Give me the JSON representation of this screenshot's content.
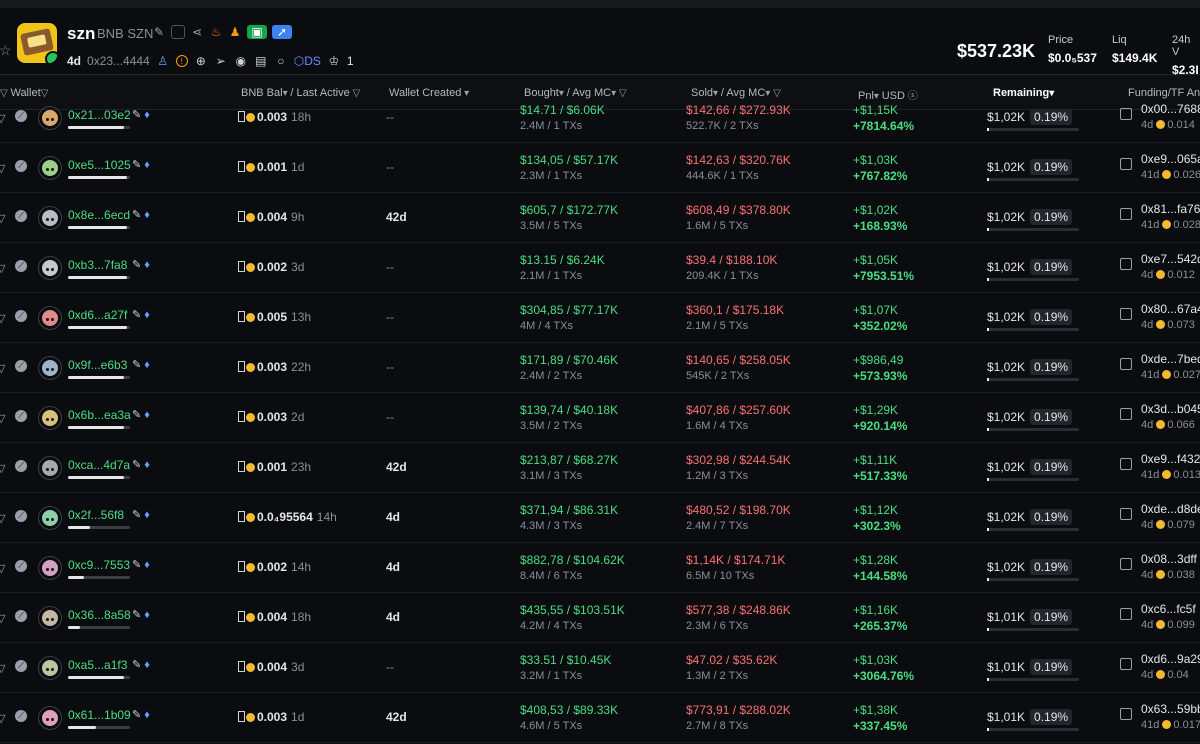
{
  "token": {
    "name": "szn",
    "chain": "BNB SZN",
    "age": "4d",
    "address": "0x23...4444",
    "dex_label": "DS",
    "holders_count": "1"
  },
  "stats": {
    "market_cap": "$537.23K",
    "price_label": "Price",
    "price_value": "$0.0₅537",
    "liq_label": "Liq",
    "liq_value": "$149.4K",
    "vol_label": "24h V",
    "vol_value": "$2.3I"
  },
  "columns": {
    "wallet": "Wallet",
    "bal": "BNB Bal",
    "last_active": "/ Last Active",
    "created": "Wallet Created",
    "bought": "Bought",
    "bought_avg": "/ Avg MC",
    "sold": "Sold",
    "sold_avg": "/ Avg MC",
    "pnl": "Pnl",
    "pnl_unit": "USD",
    "remaining": "Remaining",
    "funding": "Funding/TF An"
  },
  "colors": {
    "green": "#4ade80",
    "red": "#f87171",
    "bnb": "#f3ba2f"
  },
  "rows": [
    {
      "wallet": "0x21...03e2",
      "gem": true,
      "bar": 90,
      "avatar": "#d9a86c",
      "bal": "0.003",
      "last": "18h",
      "created": "--",
      "bought": "$14.71 / $6.06K",
      "bought_sub": "2.4M / 1 TXs",
      "sold": "$142,66 / $272.93K",
      "sold_sub": "522.7K / 2 TXs",
      "pnl": "+$1,15K",
      "pnl_pct": "+7814.64%",
      "remaining": "$1,02K",
      "rem_pct": "0.19%",
      "fund_addr": "0x00...7688",
      "fund_age": "4d",
      "fund_amt": "0.014"
    },
    {
      "wallet": "0xe5...1025",
      "gem": true,
      "bar": 95,
      "avatar": "#9ccf8a",
      "bal": "0.001",
      "last": "1d",
      "created": "--",
      "bought": "$134,05 / $57.17K",
      "bought_sub": "2.3M / 1 TXs",
      "sold": "$142,63 / $320.76K",
      "sold_sub": "444.6K / 1 TXs",
      "pnl": "+$1,03K",
      "pnl_pct": "+767.82%",
      "remaining": "$1,02K",
      "rem_pct": "0.19%",
      "fund_addr": "0xe9...065a",
      "fund_age": "41d",
      "fund_amt": "0.026"
    },
    {
      "wallet": "0x8e...6ecd",
      "gem": true,
      "bar": 95,
      "avatar": "#b9bcc4",
      "bal": "0.004",
      "last": "9h",
      "created": "42d",
      "bought": "$605,7 / $172.77K",
      "bought_sub": "3.5M / 5 TXs",
      "sold": "$608,49 / $378.80K",
      "sold_sub": "1.6M / 5 TXs",
      "pnl": "+$1,02K",
      "pnl_pct": "+168.93%",
      "remaining": "$1,02K",
      "rem_pct": "0.19%",
      "fund_addr": "0x81...fa76",
      "fund_age": "41d",
      "fund_amt": "0.028"
    },
    {
      "wallet": "0xb3...7fa8",
      "gem": true,
      "bar": 95,
      "avatar": "#c6c9cf",
      "bal": "0.002",
      "last": "3d",
      "created": "--",
      "bought": "$13.15 / $6.24K",
      "bought_sub": "2.1M / 1 TXs",
      "sold": "$39.4 / $188.10K",
      "sold_sub": "209.4K / 1 TXs",
      "pnl": "+$1,05K",
      "pnl_pct": "+7953.51%",
      "remaining": "$1,02K",
      "rem_pct": "0.19%",
      "fund_addr": "0xe7...542d",
      "fund_age": "4d",
      "fund_amt": "0.012"
    },
    {
      "wallet": "0xd6...a27f",
      "gem": true,
      "bar": 95,
      "avatar": "#e08a8a",
      "bal": "0.005",
      "last": "13h",
      "created": "--",
      "bought": "$304,85 / $77.17K",
      "bought_sub": "4M / 4 TXs",
      "sold": "$360,1 / $175.18K",
      "sold_sub": "2.1M / 5 TXs",
      "pnl": "+$1,07K",
      "pnl_pct": "+352.02%",
      "remaining": "$1,02K",
      "rem_pct": "0.19%",
      "fund_addr": "0x80...67a4",
      "fund_age": "4d",
      "fund_amt": "0.073"
    },
    {
      "wallet": "0x9f...e6b3",
      "gem": true,
      "bar": 90,
      "avatar": "#9fb3c8",
      "bal": "0.003",
      "last": "22h",
      "created": "--",
      "bought": "$171,89 / $70.46K",
      "bought_sub": "2.4M / 2 TXs",
      "sold": "$140,65 / $258.05K",
      "sold_sub": "545K / 2 TXs",
      "pnl": "+$986,49",
      "pnl_pct": "+573.93%",
      "remaining": "$1,02K",
      "rem_pct": "0.19%",
      "fund_addr": "0xde...7bed",
      "fund_age": "41d",
      "fund_amt": "0.027"
    },
    {
      "wallet": "0x6b...ea3a",
      "gem": true,
      "bar": 90,
      "avatar": "#d8c27a",
      "bal": "0.003",
      "last": "2d",
      "created": "--",
      "bought": "$139,74 / $40.18K",
      "bought_sub": "3.5M / 2 TXs",
      "sold": "$407,86 / $257.60K",
      "sold_sub": "1.6M / 4 TXs",
      "pnl": "+$1,29K",
      "pnl_pct": "+920.14%",
      "remaining": "$1,02K",
      "rem_pct": "0.19%",
      "fund_addr": "0x3d...b045",
      "fund_age": "4d",
      "fund_amt": "0.066"
    },
    {
      "wallet": "0xca...4d7a",
      "gem": true,
      "bar": 90,
      "avatar": "#a5a9b0",
      "bal": "0.001",
      "last": "23h",
      "created": "42d",
      "bought": "$213,87 / $68.27K",
      "bought_sub": "3.1M / 3 TXs",
      "sold": "$302,98 / $244.54K",
      "sold_sub": "1.2M / 3 TXs",
      "pnl": "+$1,11K",
      "pnl_pct": "+517.33%",
      "remaining": "$1,02K",
      "rem_pct": "0.19%",
      "fund_addr": "0xe9...f432",
      "fund_age": "41d",
      "fund_amt": "0.013"
    },
    {
      "wallet": "0x2f...56f8",
      "gem": true,
      "bar": 35,
      "avatar": "#8fcfa8",
      "bal": "0.0₄95564",
      "last": "14h",
      "created": "4d",
      "bought": "$371,94 / $86.31K",
      "bought_sub": "4.3M / 3 TXs",
      "sold": "$480,52 / $198.70K",
      "sold_sub": "2.4M / 7 TXs",
      "pnl": "+$1,12K",
      "pnl_pct": "+302.3%",
      "remaining": "$1,02K",
      "rem_pct": "0.19%",
      "fund_addr": "0xde...d8de",
      "fund_age": "4d",
      "fund_amt": "0.079"
    },
    {
      "wallet": "0xc9...7553",
      "gem": true,
      "bar": 25,
      "avatar": "#d5a0c0",
      "bal": "0.002",
      "last": "14h",
      "created": "4d",
      "bought": "$882,78 / $104.62K",
      "bought_sub": "8.4M / 6 TXs",
      "sold": "$1,14K / $174.71K",
      "sold_sub": "6.5M / 10 TXs",
      "pnl": "+$1,28K",
      "pnl_pct": "+144.58%",
      "remaining": "$1,02K",
      "rem_pct": "0.19%",
      "fund_addr": "0x08...3dff",
      "fund_age": "4d",
      "fund_amt": "0.038"
    },
    {
      "wallet": "0x36...8a58",
      "gem": true,
      "bar": 20,
      "avatar": "#c4b8a5",
      "bal": "0.004",
      "last": "18h",
      "created": "4d",
      "bought": "$435,55 / $103.51K",
      "bought_sub": "4.2M / 4 TXs",
      "sold": "$577,38 / $248.86K",
      "sold_sub": "2.3M / 6 TXs",
      "pnl": "+$1,16K",
      "pnl_pct": "+265.37%",
      "remaining": "$1,01K",
      "rem_pct": "0.19%",
      "fund_addr": "0xc6...fc5f",
      "fund_age": "4d",
      "fund_amt": "0.099"
    },
    {
      "wallet": "0xa5...a1f3",
      "gem": true,
      "bar": 90,
      "avatar": "#b8c7a0",
      "bal": "0.004",
      "last": "3d",
      "created": "--",
      "bought": "$33.51 / $10.45K",
      "bought_sub": "3.2M / 1 TXs",
      "sold": "$47.02 / $35.62K",
      "sold_sub": "1.3M / 2 TXs",
      "pnl": "+$1,03K",
      "pnl_pct": "+3064.76%",
      "remaining": "$1,01K",
      "rem_pct": "0.19%",
      "fund_addr": "0xd6...9a29",
      "fund_age": "4d",
      "fund_amt": "0.04"
    },
    {
      "wallet": "0x61...1b09",
      "gem": true,
      "bar": 45,
      "avatar": "#e2a0b8",
      "bal": "0.003",
      "last": "1d",
      "created": "42d",
      "bought": "$408,53 / $89.33K",
      "bought_sub": "4.6M / 5 TXs",
      "sold": "$773,91 / $288.02K",
      "sold_sub": "2.7M / 8 TXs",
      "pnl": "+$1,38K",
      "pnl_pct": "+337.45%",
      "remaining": "$1,01K",
      "rem_pct": "0.19%",
      "fund_addr": "0x63...59bb",
      "fund_age": "41d",
      "fund_amt": "0.017"
    }
  ]
}
